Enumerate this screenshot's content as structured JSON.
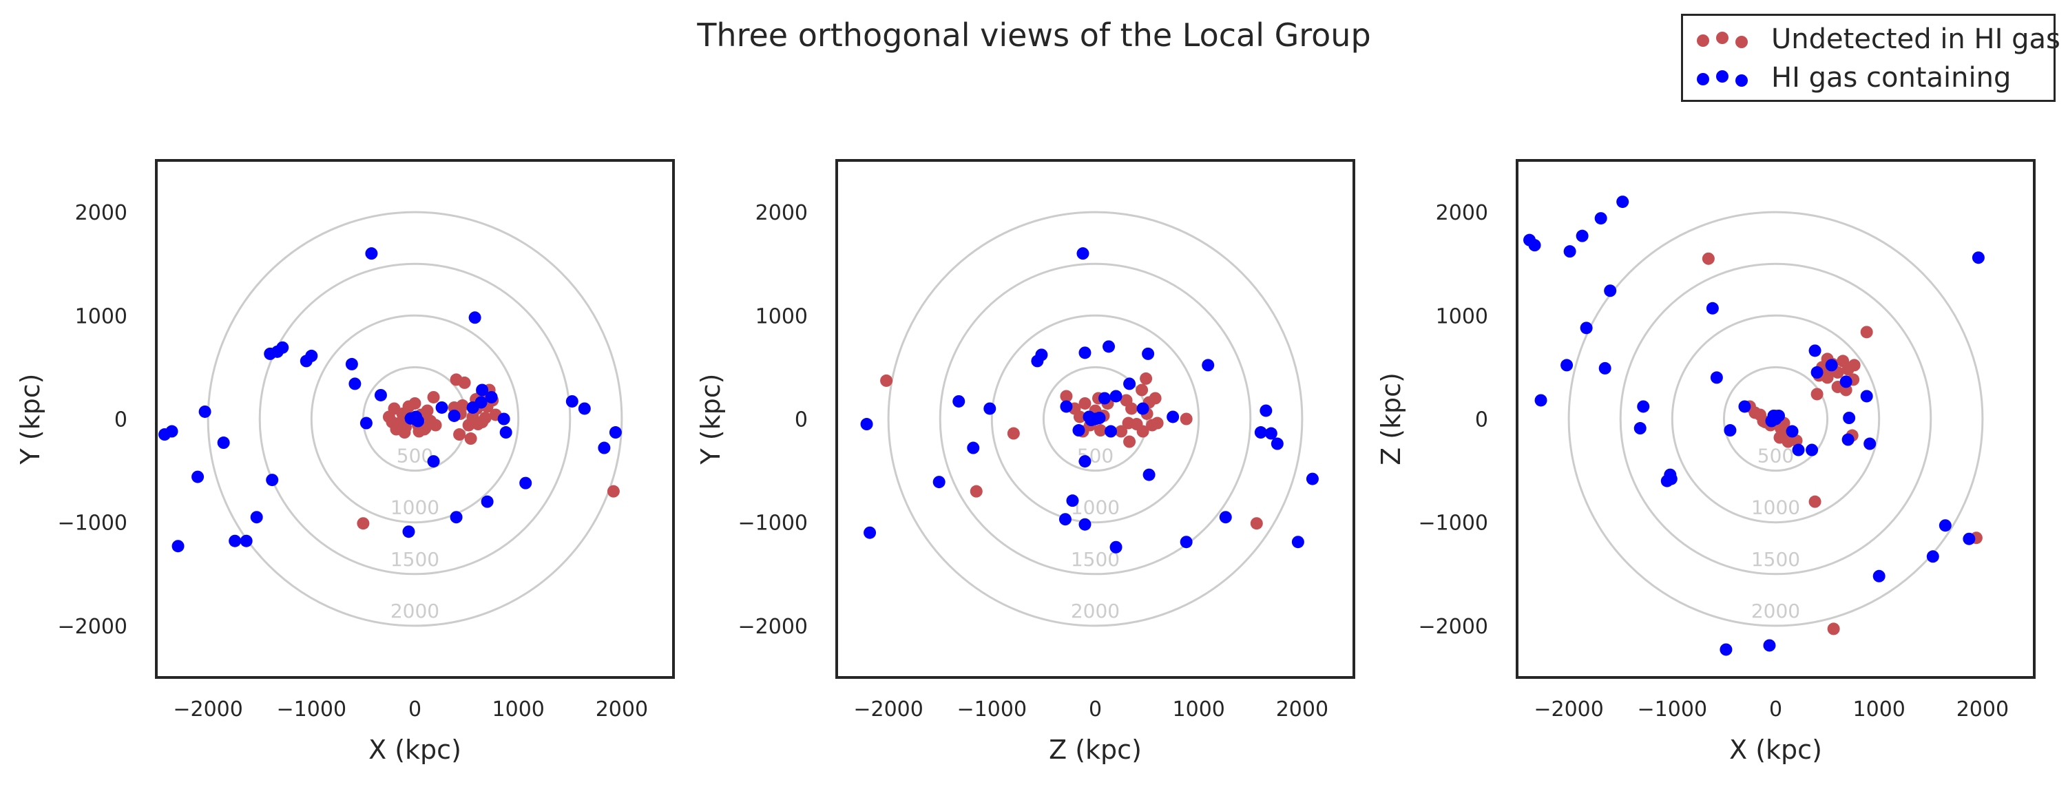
{
  "figure": {
    "title": "Three orthogonal views of the Local Group",
    "legend": {
      "position": "upper-right",
      "entries": [
        {
          "label": "Undetected in HI gas",
          "color": "#c44e52"
        },
        {
          "label": "HI gas containing",
          "color": "#0000ff"
        }
      ]
    }
  },
  "chart_data": [
    {
      "type": "scatter",
      "xlabel": "X (kpc)",
      "ylabel": "Y (kpc)",
      "xlim": [
        -2500,
        2500
      ],
      "ylim": [
        -2500,
        2500
      ],
      "xticks": [
        -2000,
        -1000,
        0,
        1000,
        2000
      ],
      "yticks": [
        -2000,
        -1000,
        0,
        1000,
        2000
      ],
      "grid": false,
      "ring_radii": [
        500,
        1000,
        1500,
        2000
      ],
      "ring_labels": [
        "500",
        "1000",
        "1500",
        "2000"
      ],
      "series": [
        {
          "name": "Undetected in HI gas",
          "color": "#c44e52",
          "points": [
            [
              -250,
              20
            ],
            [
              -200,
              100
            ],
            [
              -150,
              -40
            ],
            [
              -120,
              50
            ],
            [
              -90,
              -80
            ],
            [
              -60,
              120
            ],
            [
              -30,
              10
            ],
            [
              0,
              150
            ],
            [
              30,
              -60
            ],
            [
              60,
              40
            ],
            [
              90,
              -100
            ],
            [
              120,
              80
            ],
            [
              150,
              -20
            ],
            [
              180,
              210
            ],
            [
              -180,
              -100
            ],
            [
              -220,
              -30
            ],
            [
              -100,
              -130
            ],
            [
              40,
              -120
            ],
            [
              100,
              -90
            ],
            [
              200,
              -60
            ],
            [
              400,
              380
            ],
            [
              480,
              350
            ],
            [
              380,
              110
            ],
            [
              440,
              50
            ],
            [
              520,
              -60
            ],
            [
              560,
              20
            ],
            [
              600,
              100
            ],
            [
              650,
              -30
            ],
            [
              700,
              120
            ],
            [
              750,
              180
            ],
            [
              720,
              280
            ],
            [
              650,
              250
            ],
            [
              590,
              190
            ],
            [
              780,
              40
            ],
            [
              430,
              -150
            ],
            [
              540,
              -190
            ],
            [
              610,
              -50
            ],
            [
              680,
              10
            ],
            [
              460,
              130
            ],
            [
              -500,
              -1010
            ],
            [
              1920,
              -700
            ]
          ]
        },
        {
          "name": "HI gas containing",
          "color": "#0000ff",
          "points": [
            [
              0,
              0
            ],
            [
              -40,
              5
            ],
            [
              30,
              -20
            ],
            [
              10,
              20
            ],
            [
              -420,
              1600
            ],
            [
              580,
              980
            ],
            [
              -1400,
              630
            ],
            [
              -1280,
              690
            ],
            [
              -1050,
              560
            ],
            [
              -1000,
              610
            ],
            [
              -1330,
              650
            ],
            [
              -610,
              530
            ],
            [
              -580,
              340
            ],
            [
              -330,
              230
            ],
            [
              -470,
              -40
            ],
            [
              -2420,
              -150
            ],
            [
              -2350,
              -120
            ],
            [
              -2100,
              -560
            ],
            [
              -2030,
              70
            ],
            [
              -1850,
              -230
            ],
            [
              -1380,
              -590
            ],
            [
              -1530,
              -950
            ],
            [
              -1740,
              -1180
            ],
            [
              -1630,
              -1180
            ],
            [
              -2290,
              -1230
            ],
            [
              -60,
              -1090
            ],
            [
              400,
              -950
            ],
            [
              700,
              -800
            ],
            [
              1070,
              -620
            ],
            [
              1520,
              170
            ],
            [
              1640,
              100
            ],
            [
              1830,
              -280
            ],
            [
              1940,
              -130
            ],
            [
              860,
              0
            ],
            [
              880,
              -130
            ],
            [
              740,
              210
            ],
            [
              650,
              280
            ],
            [
              560,
              110
            ],
            [
              380,
              30
            ],
            [
              260,
              110
            ],
            [
              180,
              -410
            ],
            [
              640,
              160
            ]
          ]
        }
      ]
    },
    {
      "type": "scatter",
      "xlabel": "Z (kpc)",
      "ylabel": "Y (kpc)",
      "xlim": [
        -2500,
        2500
      ],
      "ylim": [
        -2500,
        2500
      ],
      "xticks": [
        -2000,
        -1000,
        0,
        1000,
        2000
      ],
      "yticks": [
        -2000,
        -1000,
        0,
        1000,
        2000
      ],
      "grid": false,
      "ring_radii": [
        500,
        1000,
        1500,
        2000
      ],
      "ring_labels": [
        "500",
        "1000",
        "1500",
        "2000"
      ],
      "series": [
        {
          "name": "Undetected in HI gas",
          "color": "#c44e52",
          "points": [
            [
              -200,
              100
            ],
            [
              -150,
              20
            ],
            [
              -100,
              150
            ],
            [
              -50,
              -60
            ],
            [
              0,
              80
            ],
            [
              50,
              -110
            ],
            [
              80,
              30
            ],
            [
              120,
              150
            ],
            [
              -120,
              -120
            ],
            [
              30,
              200
            ],
            [
              300,
              180
            ],
            [
              350,
              100
            ],
            [
              400,
              -50
            ],
            [
              450,
              280
            ],
            [
              500,
              50
            ],
            [
              550,
              -60
            ],
            [
              580,
              200
            ],
            [
              460,
              -120
            ],
            [
              250,
              -120
            ],
            [
              320,
              -40
            ],
            [
              490,
              390
            ],
            [
              600,
              -40
            ],
            [
              520,
              160
            ],
            [
              880,
              0
            ],
            [
              -280,
              220
            ],
            [
              -2020,
              370
            ],
            [
              -790,
              -140
            ],
            [
              -1150,
              -700
            ],
            [
              1560,
              -1010
            ],
            [
              330,
              -220
            ]
          ]
        },
        {
          "name": "HI gas containing",
          "color": "#0000ff",
          "points": [
            [
              0,
              0
            ],
            [
              -40,
              -10
            ],
            [
              40,
              10
            ],
            [
              -60,
              20
            ],
            [
              -120,
              1600
            ],
            [
              -560,
              560
            ],
            [
              -520,
              620
            ],
            [
              -100,
              640
            ],
            [
              130,
              700
            ],
            [
              510,
              630
            ],
            [
              1090,
              520
            ],
            [
              -1320,
              170
            ],
            [
              -1020,
              100
            ],
            [
              -1180,
              -280
            ],
            [
              -1510,
              -610
            ],
            [
              -2210,
              -50
            ],
            [
              -2180,
              -1100
            ],
            [
              -290,
              -970
            ],
            [
              -220,
              -790
            ],
            [
              -100,
              -1020
            ],
            [
              -100,
              -410
            ],
            [
              200,
              -1240
            ],
            [
              880,
              -1190
            ],
            [
              1260,
              -950
            ],
            [
              1960,
              -1190
            ],
            [
              2100,
              -580
            ],
            [
              1650,
              80
            ],
            [
              1600,
              -130
            ],
            [
              1700,
              -140
            ],
            [
              1760,
              -240
            ],
            [
              520,
              -540
            ],
            [
              330,
              340
            ],
            [
              200,
              220
            ],
            [
              90,
              200
            ],
            [
              -280,
              120
            ],
            [
              -160,
              -110
            ],
            [
              150,
              -120
            ],
            [
              750,
              20
            ],
            [
              460,
              100
            ]
          ]
        }
      ]
    },
    {
      "type": "scatter",
      "xlabel": "X (kpc)",
      "ylabel": "Z (kpc)",
      "xlim": [
        -2500,
        2500
      ],
      "ylim": [
        -2500,
        2500
      ],
      "xticks": [
        -2000,
        -1000,
        0,
        1000,
        2000
      ],
      "yticks": [
        -2000,
        -1000,
        0,
        1000,
        2000
      ],
      "grid": false,
      "ring_radii": [
        500,
        1000,
        1500,
        2000
      ],
      "ring_labels": [
        "500",
        "1000",
        "1500",
        "2000"
      ],
      "series": [
        {
          "name": "Undetected in HI gas",
          "color": "#c44e52",
          "points": [
            [
              -250,
              120
            ],
            [
              -200,
              60
            ],
            [
              -150,
              40
            ],
            [
              -100,
              -30
            ],
            [
              -50,
              -60
            ],
            [
              0,
              30
            ],
            [
              50,
              -90
            ],
            [
              100,
              -120
            ],
            [
              150,
              -160
            ],
            [
              200,
              -210
            ],
            [
              120,
              -220
            ],
            [
              40,
              -180
            ],
            [
              -120,
              -20
            ],
            [
              80,
              -40
            ],
            [
              450,
              500
            ],
            [
              500,
              580
            ],
            [
              550,
              530
            ],
            [
              600,
              450
            ],
            [
              650,
              560
            ],
            [
              700,
              480
            ],
            [
              750,
              380
            ],
            [
              600,
              310
            ],
            [
              500,
              400
            ],
            [
              420,
              420
            ],
            [
              680,
              280
            ],
            [
              760,
              520
            ],
            [
              540,
              480
            ],
            [
              400,
              240
            ],
            [
              740,
              -160
            ],
            [
              -650,
              1550
            ],
            [
              880,
              840
            ],
            [
              380,
              -800
            ],
            [
              560,
              -2030
            ],
            [
              1940,
              -1150
            ]
          ]
        },
        {
          "name": "HI gas containing",
          "color": "#0000ff",
          "points": [
            [
              0,
              0
            ],
            [
              -40,
              -20
            ],
            [
              30,
              30
            ],
            [
              -20,
              30
            ],
            [
              -2380,
              1730
            ],
            [
              -2330,
              1680
            ],
            [
              -1990,
              1620
            ],
            [
              -1870,
              1770
            ],
            [
              -1690,
              1940
            ],
            [
              -1480,
              2100
            ],
            [
              -1600,
              1240
            ],
            [
              -1830,
              880
            ],
            [
              -2020,
              520
            ],
            [
              -2270,
              180
            ],
            [
              -1650,
              490
            ],
            [
              -1280,
              120
            ],
            [
              -1310,
              -90
            ],
            [
              -1050,
              -600
            ],
            [
              -1020,
              -540
            ],
            [
              -1010,
              -580
            ],
            [
              -610,
              1070
            ],
            [
              -570,
              400
            ],
            [
              -440,
              -110
            ],
            [
              -300,
              120
            ],
            [
              160,
              -120
            ],
            [
              220,
              -300
            ],
            [
              350,
              -300
            ],
            [
              380,
              660
            ],
            [
              400,
              450
            ],
            [
              540,
              520
            ],
            [
              680,
              360
            ],
            [
              710,
              10
            ],
            [
              880,
              220
            ],
            [
              910,
              -240
            ],
            [
              700,
              -200
            ],
            [
              -480,
              -2230
            ],
            [
              -60,
              -2190
            ],
            [
              1000,
              -1520
            ],
            [
              1520,
              -1330
            ],
            [
              1640,
              -1030
            ],
            [
              1870,
              -1160
            ],
            [
              1960,
              1560
            ]
          ]
        }
      ]
    }
  ]
}
